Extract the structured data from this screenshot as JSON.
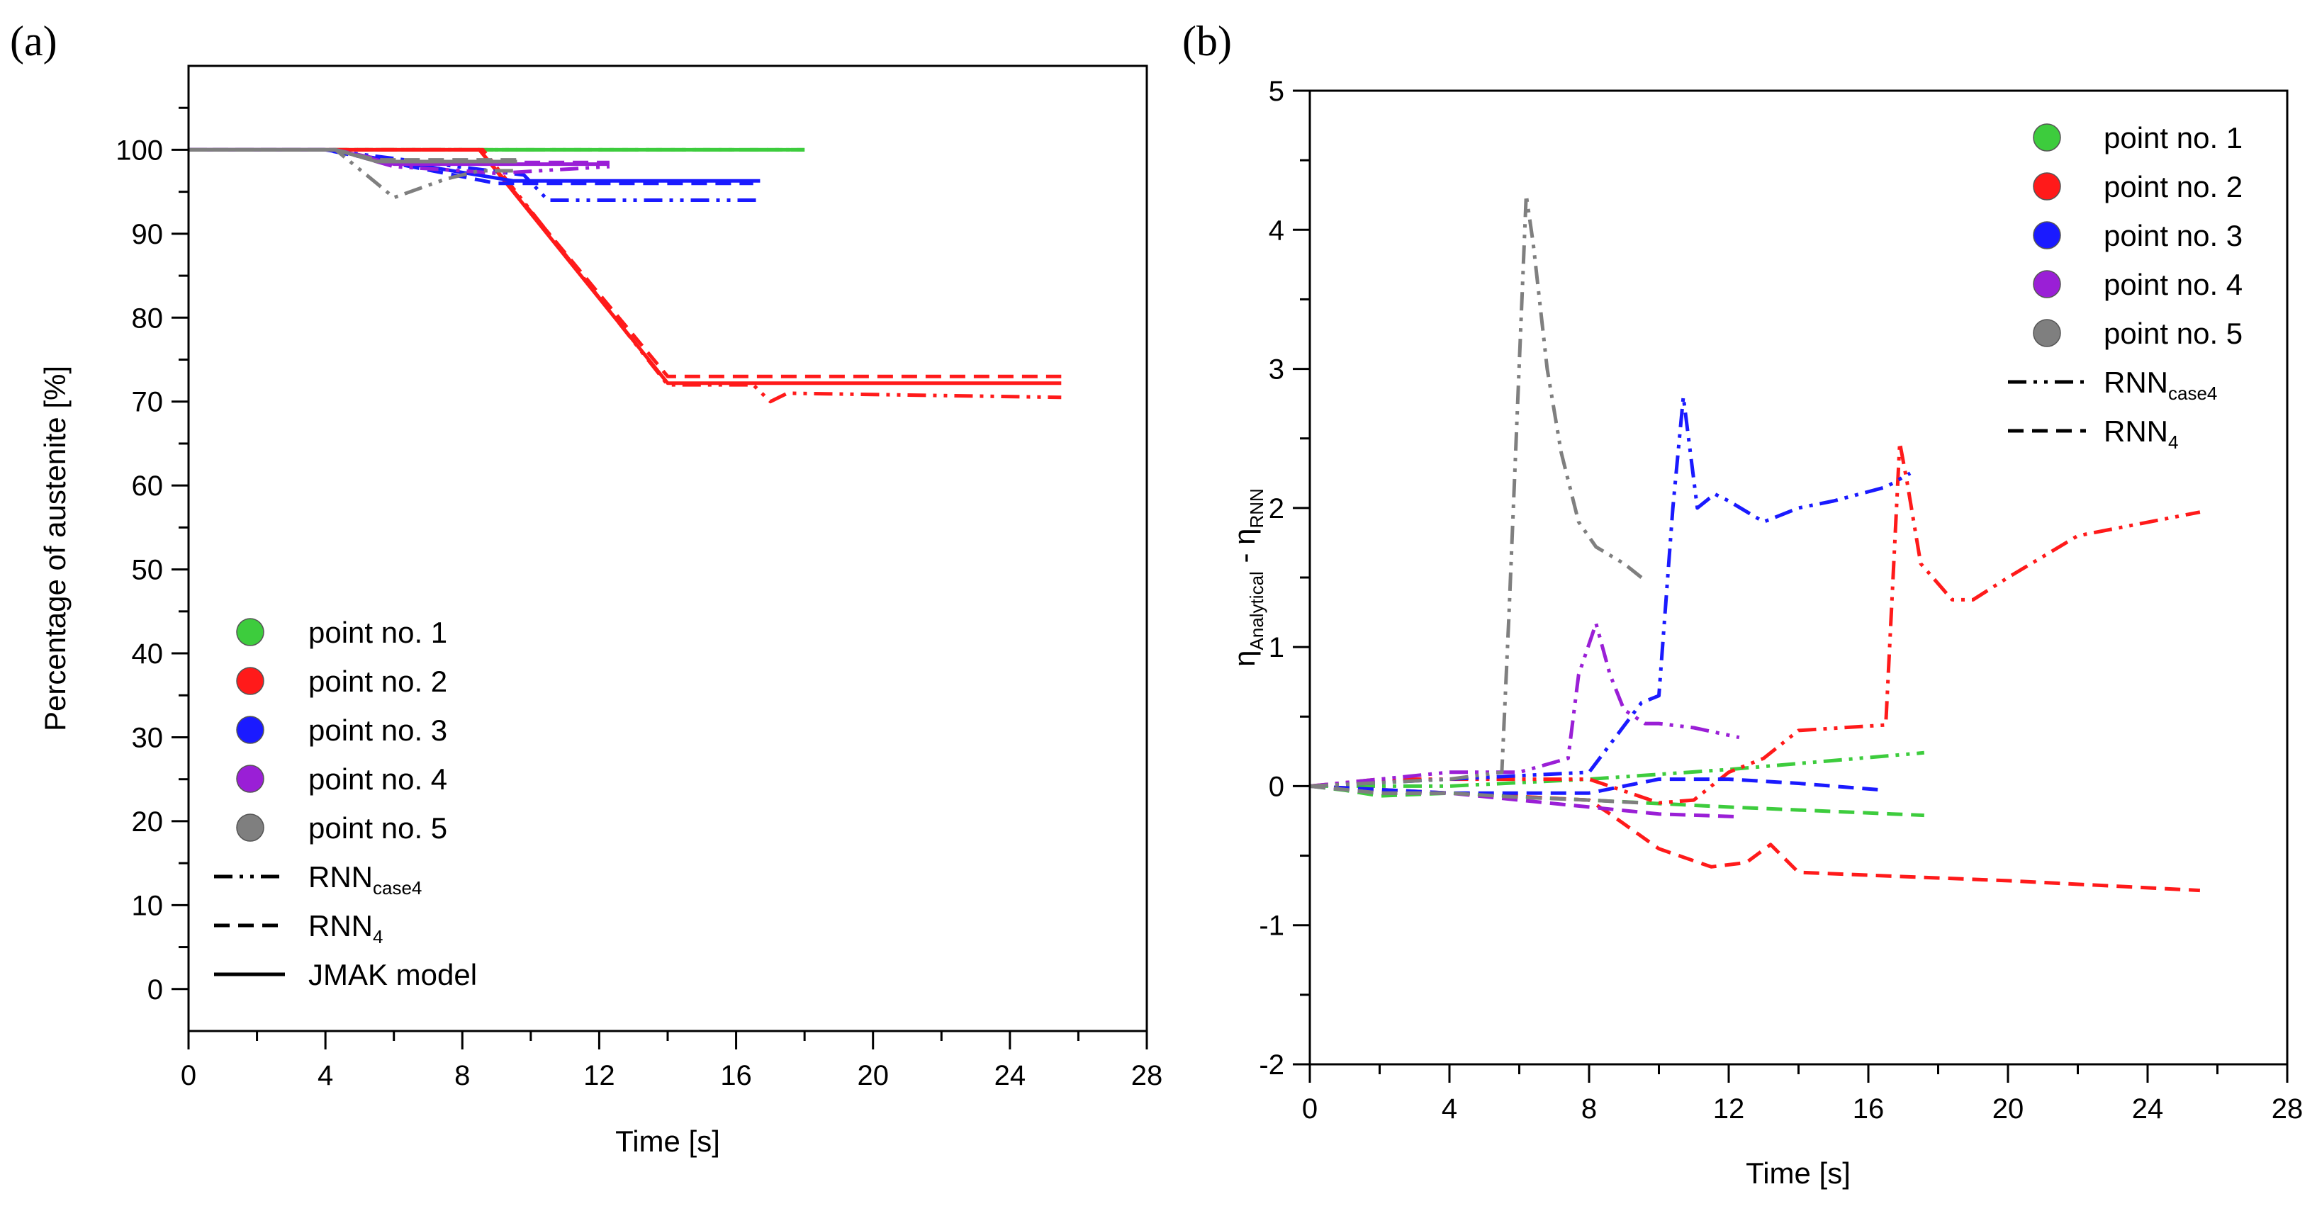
{
  "chart_data": [
    {
      "panel": "(a)",
      "type": "line",
      "xlabel": "Time [s]",
      "ylabel": "Percentage of austenite [%]",
      "xlim": [
        0,
        28
      ],
      "ylim": [
        -5,
        110
      ],
      "xticks": [
        0,
        4,
        8,
        12,
        16,
        20,
        24,
        28
      ],
      "yticks": [
        0,
        10,
        20,
        30,
        40,
        50,
        60,
        70,
        80,
        90,
        100
      ],
      "legend_position": "lower-left",
      "legend": {
        "points": [
          "point no. 1",
          "point no. 2",
          "point no. 3",
          "point no. 4",
          "point no. 5"
        ],
        "styles": [
          {
            "label": "RNN",
            "sub": "case4",
            "dash": "dashdotdot"
          },
          {
            "label": "RNN",
            "sub": "4",
            "dash": "dashed"
          },
          {
            "label": "JMAK model",
            "sub": "",
            "dash": "solid"
          }
        ]
      },
      "series": [
        {
          "name": "point no. 1",
          "color": "#3dcc3d",
          "style": "solid",
          "x": [
            0,
            18
          ],
          "y": [
            100,
            100
          ]
        },
        {
          "name": "point no. 1",
          "color": "#3dcc3d",
          "style": "dashed",
          "x": [
            0,
            18
          ],
          "y": [
            100,
            100
          ]
        },
        {
          "name": "point no. 1",
          "color": "#3dcc3d",
          "style": "dashdotdot",
          "x": [
            0,
            18
          ],
          "y": [
            100,
            100
          ]
        },
        {
          "name": "point no. 2",
          "color": "#ff1a1a",
          "style": "solid",
          "x": [
            0,
            8.5,
            14,
            25.5
          ],
          "y": [
            100,
            100,
            72.2,
            72.2
          ]
        },
        {
          "name": "point no. 2",
          "color": "#ff1a1a",
          "style": "dashed",
          "x": [
            0,
            8.5,
            14,
            25.5
          ],
          "y": [
            100,
            100,
            73,
            73
          ]
        },
        {
          "name": "point no. 2",
          "color": "#ff1a1a",
          "style": "dashdotdot",
          "x": [
            0,
            8.6,
            14,
            16.5,
            17,
            17.5,
            25.5
          ],
          "y": [
            100,
            100,
            72,
            72,
            70,
            71,
            70.5
          ]
        },
        {
          "name": "point no. 3",
          "color": "#1a1aff",
          "style": "solid",
          "x": [
            0,
            4,
            9.5,
            16.7
          ],
          "y": [
            100,
            100,
            96.3,
            96.3
          ]
        },
        {
          "name": "point no. 3",
          "color": "#1a1aff",
          "style": "dashed",
          "x": [
            0,
            4,
            9,
            16.5
          ],
          "y": [
            100,
            100,
            96,
            96
          ]
        },
        {
          "name": "point no. 3",
          "color": "#1a1aff",
          "style": "dashdotdot",
          "x": [
            0,
            4,
            9.8,
            10.5,
            16.7
          ],
          "y": [
            100,
            100,
            97,
            94,
            94
          ]
        },
        {
          "name": "point no. 4",
          "color": "#9a1fd6",
          "style": "solid",
          "x": [
            0,
            4.3,
            6,
            12.3
          ],
          "y": [
            100,
            100,
            98.3,
            98.3
          ]
        },
        {
          "name": "point no. 4",
          "color": "#9a1fd6",
          "style": "dashed",
          "x": [
            0,
            4.3,
            6,
            12.3
          ],
          "y": [
            100,
            100,
            98.5,
            98.5
          ]
        },
        {
          "name": "point no. 4",
          "color": "#9a1fd6",
          "style": "dashdotdot",
          "x": [
            0,
            4.3,
            6,
            8,
            9,
            12.3
          ],
          "y": [
            100,
            100,
            98,
            97.5,
            97.2,
            98
          ]
        },
        {
          "name": "point no. 5",
          "color": "#7f7f7f",
          "style": "solid",
          "x": [
            0,
            4.3,
            5.5,
            9.6
          ],
          "y": [
            100,
            100,
            98.6,
            98.6
          ]
        },
        {
          "name": "point no. 5",
          "color": "#7f7f7f",
          "style": "dashed",
          "x": [
            0,
            4.3,
            5.5,
            9.6
          ],
          "y": [
            100,
            100,
            98.8,
            98.8
          ]
        },
        {
          "name": "point no. 5",
          "color": "#7f7f7f",
          "style": "dashdotdot",
          "x": [
            0,
            4.3,
            5.5,
            6,
            7.5,
            8.5,
            9.6
          ],
          "y": [
            100,
            100,
            96,
            94.3,
            96.5,
            97.5,
            97.5
          ]
        }
      ]
    },
    {
      "panel": "(b)",
      "type": "line",
      "xlabel": "Time [s]",
      "ylabel": "η",
      "ylabel_sub1": "Analytical",
      "ylabel_mid": " - η",
      "ylabel_sub2": "RNN",
      "xlim": [
        0,
        28
      ],
      "ylim": [
        -2,
        5
      ],
      "xticks": [
        0,
        4,
        8,
        12,
        16,
        20,
        24,
        28
      ],
      "yticks": [
        -2,
        -1,
        0,
        1,
        2,
        3,
        4,
        5
      ],
      "legend_position": "top-right",
      "legend": {
        "points": [
          "point no. 1",
          "point no. 2",
          "point no. 3",
          "point no. 4",
          "point no. 5"
        ],
        "styles": [
          {
            "label": "RNN",
            "sub": "case4",
            "dash": "dashdotdot"
          },
          {
            "label": "RNN",
            "sub": "4",
            "dash": "dashed"
          }
        ]
      },
      "series": [
        {
          "name": "point no. 1",
          "color": "#3dcc3d",
          "style": "dashdotdot",
          "x": [
            0,
            4,
            8,
            12,
            17.6
          ],
          "y": [
            0,
            0,
            0.05,
            0.12,
            0.24
          ]
        },
        {
          "name": "point no. 1",
          "color": "#3dcc3d",
          "style": "dashed",
          "x": [
            0,
            1,
            2,
            4,
            8,
            12,
            17.6
          ],
          "y": [
            0,
            -0.03,
            -0.07,
            -0.05,
            -0.1,
            -0.15,
            -0.21
          ]
        },
        {
          "name": "point no. 2",
          "color": "#ff1a1a",
          "style": "dashdotdot",
          "x": [
            0,
            2,
            4,
            6,
            8,
            10,
            11,
            12,
            13,
            14,
            16.5,
            16.9,
            17.1,
            17.5,
            18.4,
            19,
            20,
            22,
            25.5
          ],
          "y": [
            0,
            0.05,
            0.05,
            0.05,
            0.05,
            -0.12,
            -0.1,
            0.1,
            0.2,
            0.4,
            0.44,
            2.47,
            2.2,
            1.6,
            1.34,
            1.34,
            1.5,
            1.8,
            1.97
          ]
        },
        {
          "name": "point no. 2",
          "color": "#ff1a1a",
          "style": "dashed",
          "x": [
            0,
            4,
            8,
            8.6,
            10,
            11.5,
            12.5,
            13.2,
            14,
            16,
            20,
            25.5
          ],
          "y": [
            0,
            -0.05,
            -0.1,
            -0.2,
            -0.45,
            -0.58,
            -0.55,
            -0.42,
            -0.62,
            -0.64,
            -0.68,
            -0.75
          ]
        },
        {
          "name": "point no. 3",
          "color": "#1a1aff",
          "style": "dashdotdot",
          "x": [
            0,
            4,
            8,
            9.5,
            10,
            10.4,
            10.7,
            11.1,
            11.6,
            12,
            13,
            14,
            15,
            16.5,
            17.2
          ],
          "y": [
            0,
            0.05,
            0.1,
            0.6,
            0.65,
            2.0,
            2.8,
            2.0,
            2.1,
            2.05,
            1.9,
            2.0,
            2.05,
            2.15,
            2.25
          ]
        },
        {
          "name": "point no. 3",
          "color": "#1a1aff",
          "style": "dashed",
          "x": [
            0,
            4,
            8,
            10,
            12,
            14,
            16.5
          ],
          "y": [
            0,
            -0.05,
            -0.05,
            0.05,
            0.05,
            0.02,
            -0.03
          ]
        },
        {
          "name": "point no. 4",
          "color": "#9a1fd6",
          "style": "dashdotdot",
          "x": [
            0,
            2,
            4,
            6,
            7.4,
            7.7,
            8.2,
            8.6,
            9,
            9.6,
            10,
            11,
            12.3
          ],
          "y": [
            0,
            0.05,
            0.1,
            0.1,
            0.2,
            0.8,
            1.17,
            0.8,
            0.55,
            0.45,
            0.45,
            0.42,
            0.35
          ]
        },
        {
          "name": "point no. 4",
          "color": "#9a1fd6",
          "style": "dashed",
          "x": [
            0,
            2,
            4,
            6,
            8,
            10,
            12.3
          ],
          "y": [
            0,
            -0.05,
            -0.05,
            -0.1,
            -0.15,
            -0.2,
            -0.22
          ]
        },
        {
          "name": "point no. 5",
          "color": "#7f7f7f",
          "style": "dashdotdot",
          "x": [
            0,
            4,
            5.5,
            5.7,
            6.2,
            6.4,
            6.8,
            7.2,
            7.7,
            8.2,
            9,
            9.5
          ],
          "y": [
            0,
            0.05,
            0.1,
            1.2,
            4.25,
            3.9,
            3.0,
            2.4,
            1.9,
            1.72,
            1.6,
            1.5
          ]
        },
        {
          "name": "point no. 5",
          "color": "#7f7f7f",
          "style": "dashed",
          "x": [
            0,
            2,
            4,
            6,
            8,
            9.5
          ],
          "y": [
            0,
            -0.05,
            -0.05,
            -0.08,
            -0.1,
            -0.12
          ]
        }
      ]
    }
  ]
}
